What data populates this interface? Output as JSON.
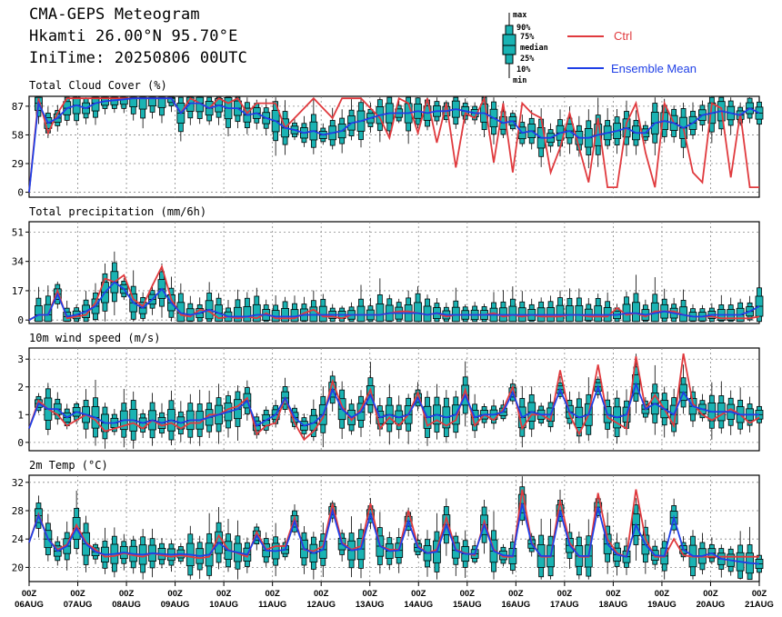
{
  "header": {
    "title": "CMA-GEPS Meteogram",
    "location": "Hkamti 26.00°N 95.70°E",
    "init": "IniTime: 20250806 00UTC"
  },
  "boxlegend": {
    "max": "max",
    "p90": "90%",
    "p75": "75%",
    "median": "median",
    "p25": "25%",
    "p10": "10%",
    "min": "min"
  },
  "legend": {
    "ctrl": "Ctrl",
    "mean": "Ensemble Mean",
    "ctrl_color": "#e03a3e",
    "mean_color": "#1f3fe6",
    "box_color": "#1ab3b3"
  },
  "chart_data": [
    {
      "type": "box",
      "title": "Total Cloud Cover (%)",
      "ylim": [
        -5,
        97
      ],
      "yticks": [
        0,
        29,
        58,
        87
      ],
      "ctrl": [
        0,
        95,
        60,
        80,
        95,
        95,
        95,
        95,
        95,
        95,
        95,
        95,
        95,
        95,
        95,
        95,
        80,
        95,
        90,
        85,
        95,
        90,
        95,
        80,
        90,
        90,
        90,
        65,
        75,
        85,
        95,
        85,
        75,
        95,
        95,
        95,
        85,
        75,
        55,
        95,
        90,
        60,
        95,
        50,
        90,
        25,
        80,
        75,
        95,
        30,
        90,
        20,
        90,
        80,
        75,
        20,
        45,
        80,
        45,
        10,
        75,
        5,
        5,
        70,
        90,
        40,
        5,
        90,
        70,
        65,
        20,
        10,
        90,
        85,
        15,
        80,
        5,
        5
      ],
      "mean": [
        0,
        90,
        70,
        75,
        85,
        88,
        85,
        90,
        92,
        93,
        94,
        95,
        95,
        95,
        95,
        95,
        80,
        90,
        90,
        85,
        88,
        85,
        85,
        78,
        80,
        75,
        72,
        65,
        63,
        60,
        62,
        58,
        60,
        62,
        70,
        72,
        75,
        78,
        80,
        80,
        80,
        82,
        80,
        82,
        82,
        84,
        82,
        80,
        80,
        75,
        70,
        72,
        60,
        62,
        55,
        55,
        60,
        62,
        55,
        55,
        58,
        60,
        62,
        65,
        60,
        60,
        70,
        72,
        70,
        65,
        70,
        78,
        80,
        82,
        80,
        78,
        85,
        80
      ],
      "skip_boxes": []
    },
    {
      "type": "box",
      "title": "Total precipitation (mm/6h)",
      "ylim": [
        -2,
        57
      ],
      "yticks": [
        0,
        17,
        34,
        51
      ],
      "ctrl": [
        0,
        3,
        3,
        17,
        1,
        2,
        3,
        10,
        24,
        22,
        26,
        12,
        8,
        20,
        31,
        12,
        3,
        2,
        6,
        5,
        1,
        2,
        1,
        2,
        1,
        4,
        1,
        1,
        1,
        4,
        6,
        2,
        2,
        1,
        3,
        3,
        3,
        3,
        4,
        5,
        5,
        4,
        3,
        4,
        2,
        3,
        3,
        3,
        3,
        4,
        2,
        3,
        2,
        3,
        2,
        2,
        2,
        3,
        3,
        2,
        2,
        2,
        7,
        3,
        4,
        2,
        5,
        5,
        5,
        3,
        2,
        2,
        2,
        1,
        1,
        1,
        1,
        2
      ],
      "mean": [
        0,
        3,
        3,
        15,
        2,
        3,
        5,
        8,
        16,
        22,
        18,
        10,
        7,
        12,
        18,
        10,
        4,
        3,
        4,
        6,
        4,
        2,
        2,
        2,
        3,
        3,
        2,
        2,
        2,
        3,
        3,
        3,
        3,
        3,
        3,
        3,
        3,
        3,
        4,
        4,
        4,
        4,
        3,
        4,
        3,
        3,
        3,
        3,
        3,
        3,
        3,
        3,
        3,
        3,
        3,
        3,
        3,
        3,
        3,
        3,
        3,
        3,
        3,
        4,
        4,
        3,
        4,
        5,
        4,
        3,
        2,
        2,
        3,
        3,
        3,
        3,
        5,
        8
      ],
      "skip_boxes": []
    },
    {
      "type": "box",
      "title": "10m wind speed (m/s)",
      "ylim": [
        -0.3,
        3.4
      ],
      "yticks": [
        0,
        1,
        2,
        3
      ],
      "ctrl": [
        0.5,
        1.5,
        1.2,
        1.0,
        0.6,
        0.8,
        1.0,
        0.8,
        0.4,
        0.5,
        0.6,
        0.7,
        0.5,
        0.8,
        0.6,
        0.7,
        0.5,
        0.7,
        0.7,
        1.0,
        1.0,
        1.2,
        1.3,
        1.6,
        0.3,
        0.6,
        0.7,
        1.6,
        0.7,
        0.1,
        0.4,
        0.9,
        2.2,
        1.3,
        0.8,
        1.2,
        1.9,
        0.5,
        0.9,
        0.6,
        1.0,
        1.8,
        0.6,
        0.8,
        0.6,
        0.8,
        1.9,
        0.6,
        1.0,
        0.8,
        1.2,
        2.0,
        0.5,
        1.0,
        1.0,
        0.8,
        2.6,
        1.0,
        0.3,
        1.0,
        2.8,
        0.9,
        0.7,
        0.5,
        3.1,
        1.2,
        1.7,
        1.2,
        0.6,
        3.2,
        1.4,
        1.0,
        0.8,
        1.0,
        1.2,
        1.0,
        0.7,
        0.9
      ],
      "mean": [
        0.5,
        1.4,
        1.2,
        1.2,
        0.9,
        1.1,
        1.0,
        0.9,
        0.7,
        0.7,
        0.8,
        0.8,
        0.7,
        0.8,
        0.7,
        0.8,
        0.7,
        0.8,
        0.8,
        0.9,
        1.0,
        1.1,
        1.2,
        1.5,
        0.6,
        0.8,
        1.0,
        1.6,
        0.9,
        0.6,
        0.7,
        1.0,
        1.9,
        1.2,
        0.9,
        1.1,
        1.7,
        0.9,
        1.0,
        0.9,
        1.0,
        1.6,
        0.9,
        1.0,
        0.9,
        1.0,
        1.7,
        0.9,
        1.0,
        1.0,
        1.1,
        1.8,
        0.9,
        1.1,
        1.0,
        1.0,
        1.9,
        1.1,
        0.9,
        1.0,
        2.0,
        1.0,
        0.9,
        1.0,
        2.1,
        1.2,
        1.4,
        1.2,
        1.0,
        1.8,
        1.3,
        1.2,
        1.1,
        1.1,
        1.1,
        1.0,
        1.0,
        1.0
      ],
      "skip_boxes": []
    },
    {
      "type": "box",
      "title": "2m Temp (°C)",
      "ylim": [
        18,
        33
      ],
      "yticks": [
        20,
        24,
        28,
        32
      ],
      "ctrl": [
        23.5,
        27.5,
        24,
        22.5,
        23.2,
        26,
        23.5,
        22.5,
        21.5,
        21.6,
        22,
        21.7,
        21.5,
        22,
        21.7,
        21.5,
        21.7,
        21.5,
        21.3,
        21.5,
        24.5,
        22.5,
        22,
        21.5,
        25,
        22.5,
        23,
        23,
        27,
        22.5,
        22.3,
        23,
        29,
        23.5,
        22.5,
        23,
        29,
        23,
        22.5,
        22.5,
        28,
        23,
        22,
        22.5,
        27,
        22.5,
        22,
        21.7,
        26.5,
        22.5,
        21.5,
        21.5,
        31,
        23.5,
        21.5,
        21.5,
        29.5,
        23.5,
        21.5,
        21.5,
        30.5,
        24,
        22,
        21.5,
        31,
        24,
        21.5,
        21.5,
        24,
        21.7,
        21.5,
        21.5,
        21.5,
        21.5,
        21.5,
        21.5,
        21.5,
        21.5
      ],
      "mean": [
        23.5,
        27.3,
        24,
        22.3,
        23,
        25.5,
        23.3,
        22.2,
        21.8,
        21.9,
        22.1,
        21.9,
        21.8,
        22,
        21.9,
        21.8,
        21.9,
        21.8,
        21.6,
        21.8,
        23.5,
        22.4,
        22.1,
        21.8,
        24.5,
        22.4,
        22.3,
        22.5,
        26.5,
        22.6,
        22,
        22.5,
        28,
        23.3,
        22.4,
        22.6,
        27.5,
        23,
        22.3,
        22.4,
        26.5,
        22.8,
        22,
        22.2,
        26,
        22.4,
        21.9,
        21.9,
        26,
        22.3,
        21.7,
        21.6,
        29,
        23.3,
        21.6,
        21.6,
        28,
        23.1,
        21.6,
        21.6,
        28.5,
        23.3,
        21.8,
        21.5,
        26,
        23.2,
        21.7,
        21.6,
        27,
        22.5,
        21.6,
        21.6,
        22,
        21.2,
        21,
        20.8,
        20.6,
        20.5
      ],
      "skip_boxes": []
    }
  ],
  "xaxis": {
    "hour_labels": [
      "00Z",
      "00Z",
      "00Z",
      "00Z",
      "00Z",
      "00Z",
      "00Z",
      "00Z",
      "00Z",
      "00Z",
      "00Z",
      "00Z",
      "00Z",
      "00Z",
      "00Z",
      "00Z"
    ],
    "date_labels": [
      "06AUG",
      "07AUG",
      "08AUG",
      "09AUG",
      "10AUG",
      "11AUG",
      "12AUG",
      "13AUG",
      "14AUG",
      "15AUG",
      "16AUG",
      "17AUG",
      "18AUG",
      "19AUG",
      "20AUG",
      "21AUG"
    ]
  }
}
